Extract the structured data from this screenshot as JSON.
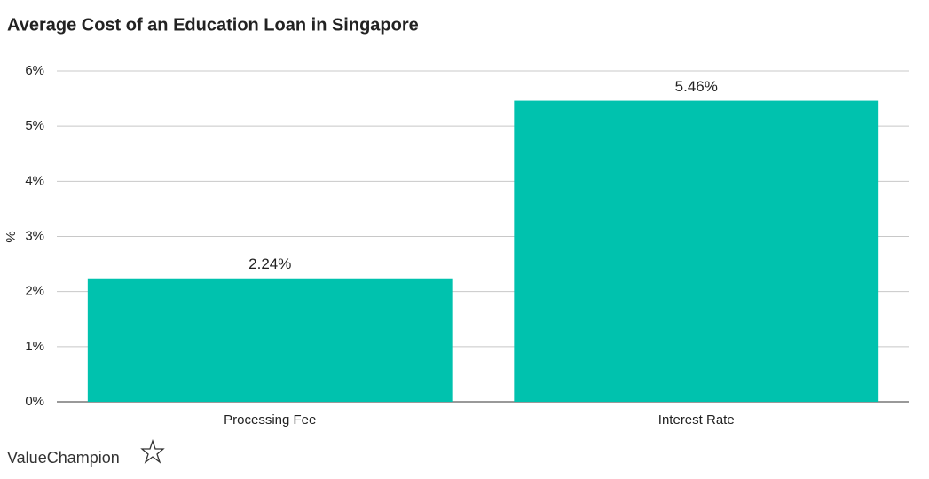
{
  "chart_data": {
    "type": "bar",
    "title": "Average Cost of an Education Loan in Singapore",
    "y_label": "%",
    "categories": [
      "Processing Fee",
      "Interest Rate"
    ],
    "values": [
      2.24,
      5.46
    ],
    "value_labels": [
      "2.24%",
      "5.46%"
    ],
    "color": "#00c2ae",
    "ylim": [
      0,
      6
    ],
    "yticks": [
      {
        "value": 0,
        "label": "0%"
      },
      {
        "value": 1,
        "label": "1%"
      },
      {
        "value": 2,
        "label": "2%"
      },
      {
        "value": 3,
        "label": "3%"
      },
      {
        "value": 4,
        "label": "4%"
      },
      {
        "value": 5,
        "label": "5%"
      },
      {
        "value": 6,
        "label": "6%"
      }
    ],
    "grid": true
  },
  "brand": "ValueChampion"
}
